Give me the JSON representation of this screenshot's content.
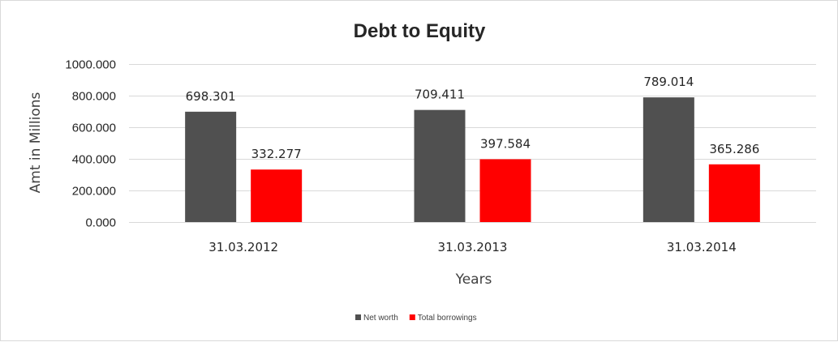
{
  "chart_data": {
    "type": "bar",
    "title": "Debt to Equity",
    "xlabel": "Years",
    "ylabel": "Amt in Millions",
    "categories": [
      "31.03.2012",
      "31.03.2013",
      "31.03.2014"
    ],
    "series": [
      {
        "name": "Net worth",
        "color": "#505050",
        "values": [
          698.301,
          709.411,
          789.014
        ],
        "labels": [
          "698.301",
          "709.411",
          "789.014"
        ]
      },
      {
        "name": "Total borrowings",
        "color": "#ff0000",
        "values": [
          332.277,
          397.584,
          365.286
        ],
        "labels": [
          "332.277",
          "397.584",
          "365.286"
        ]
      }
    ],
    "ylim": [
      0,
      1000
    ],
    "yticks": [
      0,
      200,
      400,
      600,
      800,
      1000
    ],
    "ytick_labels": [
      "0.000",
      "200.000",
      "400.000",
      "600.000",
      "800.000",
      "1000.000"
    ],
    "grid": true,
    "legend_position": "bottom"
  }
}
